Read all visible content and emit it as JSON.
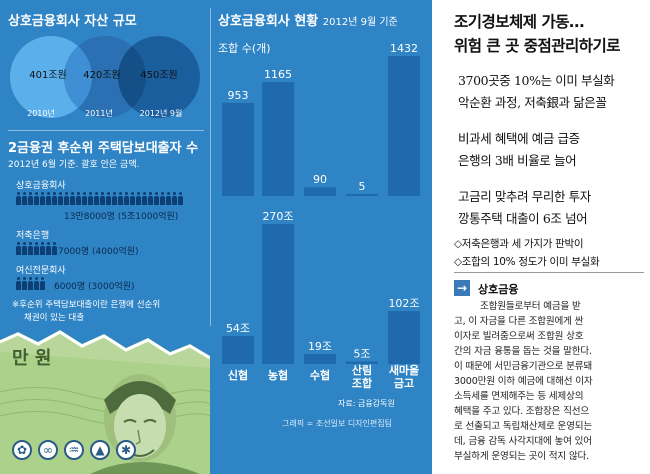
{
  "assets": {
    "title": "상호금융회사 자산 규모",
    "items": [
      {
        "value": "401조원",
        "year": "2010년"
      },
      {
        "value": "420조원",
        "year": "2011년"
      },
      {
        "value": "450조원",
        "year": "2012년 9월"
      }
    ]
  },
  "loans": {
    "title": "2금융권 후순위 주택담보대출자 수",
    "subtitle": "2012년 6월 기준. 괄호 안은 금액.",
    "rows": [
      {
        "label": "상호금융회사",
        "value": "13만8000명 (5조1000억원)",
        "count": 138000
      },
      {
        "label": "저축은행",
        "value": "7000명 (4000억원)",
        "count": 7000
      },
      {
        "label": "여신전문회사",
        "value": "6000명 (3000억원)",
        "count": 6000
      }
    ],
    "note_line1": "※후순위 주택담보대출이란 은행에 선순위",
    "note_line2": "채권이 있는 대출"
  },
  "banknote": {
    "text": "만 원"
  },
  "chart": {
    "title": "상호금융회사 현황",
    "title_sub": "2012년 9월 기준",
    "source": "자료: 금융감독원",
    "credit": "그래픽 = 조선일보 디자인편집팀"
  },
  "chart_data": [
    {
      "type": "bar",
      "title": "조합 수(개)",
      "categories": [
        "신협",
        "농협",
        "수협",
        "산림조합",
        "새마을금고"
      ],
      "values": [
        953,
        1165,
        90,
        5,
        1432
      ],
      "value_labels": [
        "953",
        "1165",
        "90",
        "5",
        "1432"
      ]
    },
    {
      "type": "bar",
      "title": "",
      "categories": [
        "신협",
        "농협",
        "수협",
        "산림조합",
        "새마을금고"
      ],
      "values": [
        54,
        270,
        19,
        5,
        102
      ],
      "value_labels": [
        "54조",
        "270조",
        "19조",
        "5조",
        "102조"
      ]
    }
  ],
  "category_labels": [
    [
      "신협"
    ],
    [
      "농협"
    ],
    [
      "수협"
    ],
    [
      "산림",
      "조합"
    ],
    [
      "새마을",
      "금고"
    ]
  ],
  "article": {
    "headline_line1": "조기경보체제 가동…",
    "headline_line2": "위험 큰 곳 중점관리하기로",
    "subheads": [
      "3700곳중 10%는 이미 부실화",
      "악순환 과정, 저축銀과 닮은꼴",
      "비과세 혜택에 예금 급증",
      "은행의 3배 비율로 늘어",
      "고금리 맞추려 무리한 투자",
      "깡통주택 대출이 6조 넘어"
    ],
    "bullets": [
      "◇저축은행과 세 가지가 판박이",
      "◇조합의 10% 정도가 이미 부실화"
    ],
    "glossary_term": "상호금융",
    "body": [
      "조합원들로부터 예금을 받",
      "고, 이 자금을 다른 조합원에게 싼",
      "이자로 빌려줌으로써 조합원 상호",
      "간의 자금 융통을 돕는 것을 말한다.",
      "이 때문에 서민금융기관으로 분류돼",
      "3000만원 이하 예금에 대해선 이자",
      "소득세를 면제해주는 등 세제상의",
      "혜택을 주고 있다. 조합장은 직선으",
      "로 선출되고 독립채산제로 운영되는",
      "데, 금융 감독 사각지대에 놓여 있어",
      "부실하게 운영되는 곳이 적지 않다."
    ]
  },
  "colors": {
    "panel": "#2f84c6",
    "bar": "#1f6aad",
    "circle_light": "#4da6e6",
    "circle_dark": "#1b5e9e",
    "article_text": "#111111"
  }
}
